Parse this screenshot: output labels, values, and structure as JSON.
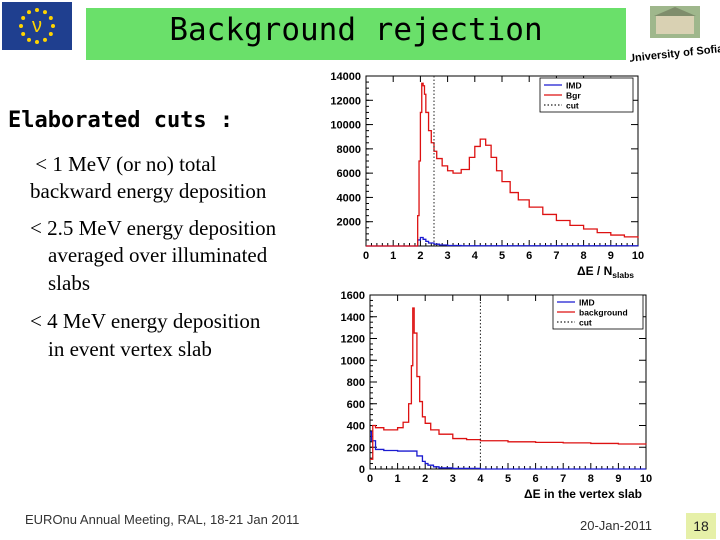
{
  "slide": {
    "title": "Background rejection",
    "subheading": "Elaborated cuts :",
    "bullets": [
      " < 1 MeV (or no) total",
      "backward energy deposition",
      "< 2.5 MeV energy deposition",
      "averaged over illuminated",
      "slabs",
      "< 4 MeV energy deposition",
      "in event vertex slab"
    ],
    "footer_left": "EUROnu Annual Meeting, RAL, 18-21 Jan 2011",
    "footer_date": "20-Jan-2011",
    "page_number": "18",
    "logo_text": "University of Sofia",
    "flag_symbol": "ν"
  },
  "colors": {
    "title_bg": "#6ae06a",
    "flag_bg": "#1f3f8f",
    "star": "#ffd400",
    "series_imd": "#1a1ad0",
    "series_bgr": "#dd1111",
    "cut": "#222222",
    "page_num_bg": "#e6f0a8"
  },
  "chart_data": [
    {
      "type": "line",
      "xlabel": "ΔE / N",
      "xlabel_sub": "slabs",
      "xlim": [
        0,
        10
      ],
      "ylim": [
        0,
        14000
      ],
      "xticks": [
        0,
        1,
        2,
        3,
        4,
        5,
        6,
        7,
        8,
        9,
        10
      ],
      "yticks": [
        2000,
        4000,
        6000,
        8000,
        10000,
        12000,
        14000
      ],
      "legend_position": "top-right",
      "cut": 2.5,
      "series": [
        {
          "name": "IMD",
          "x": [
            0,
            1.8,
            1.9,
            2.0,
            2.1,
            2.2,
            2.3,
            2.5,
            2.7,
            3.0,
            3.5,
            10
          ],
          "y": [
            0,
            0,
            500,
            700,
            550,
            380,
            250,
            150,
            80,
            40,
            20,
            0
          ]
        },
        {
          "name": "Bgr",
          "x": [
            0,
            1.85,
            1.9,
            1.95,
            2.0,
            2.05,
            2.1,
            2.15,
            2.2,
            2.3,
            2.4,
            2.5,
            2.6,
            2.8,
            3.0,
            3.2,
            3.5,
            3.8,
            4.0,
            4.2,
            4.4,
            4.6,
            4.8,
            5.0,
            5.3,
            5.6,
            6.0,
            6.5,
            7.0,
            7.5,
            8.0,
            8.5,
            9.0,
            9.5,
            10.0
          ],
          "y": [
            0,
            0,
            2500,
            7000,
            11000,
            13400,
            13200,
            12500,
            11000,
            9500,
            8500,
            7800,
            7200,
            6600,
            6200,
            6000,
            6300,
            7300,
            8200,
            8800,
            8300,
            7300,
            6200,
            5300,
            4400,
            3800,
            3200,
            2600,
            2100,
            1700,
            1400,
            1100,
            900,
            750,
            650
          ]
        }
      ]
    },
    {
      "type": "line",
      "xlabel": "ΔE in the vertex slab",
      "xlim": [
        0,
        10
      ],
      "ylim": [
        0,
        1600
      ],
      "xticks": [
        0,
        1,
        2,
        3,
        4,
        5,
        6,
        7,
        8,
        9,
        10
      ],
      "yticks": [
        0,
        200,
        400,
        600,
        800,
        1000,
        1200,
        1400,
        1600
      ],
      "legend_position": "top-right",
      "cut": 4,
      "series": [
        {
          "name": "IMD",
          "x": [
            0,
            0.05,
            0.2,
            0.5,
            1.0,
            1.5,
            1.7,
            1.9,
            2.0,
            2.1,
            2.3,
            2.5,
            3.0,
            4.0,
            10.0
          ],
          "y": [
            340,
            260,
            180,
            170,
            165,
            165,
            120,
            70,
            50,
            35,
            20,
            10,
            5,
            0,
            0
          ]
        },
        {
          "name": "background",
          "x": [
            0,
            0.1,
            0.2,
            0.5,
            1.0,
            1.2,
            1.4,
            1.5,
            1.55,
            1.6,
            1.7,
            1.8,
            1.9,
            2.0,
            2.2,
            2.5,
            3.0,
            3.5,
            4.0,
            5.0,
            6.0,
            7.0,
            8.0,
            9.0,
            10.0
          ],
          "y": [
            90,
            400,
            380,
            360,
            380,
            430,
            600,
            950,
            1480,
            1250,
            850,
            620,
            480,
            420,
            360,
            320,
            280,
            270,
            260,
            250,
            245,
            240,
            235,
            230,
            225
          ]
        }
      ]
    }
  ]
}
